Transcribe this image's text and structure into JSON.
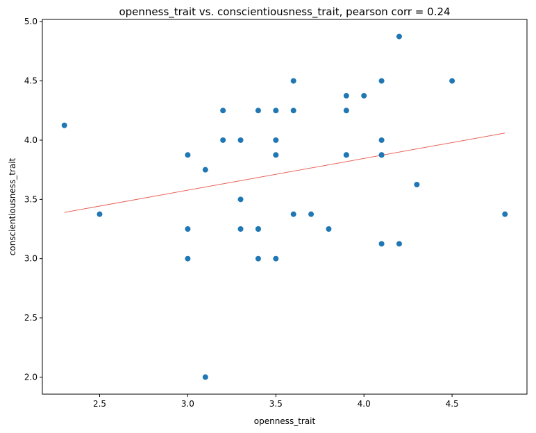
{
  "chart_data": {
    "type": "scatter",
    "title": "openness_trait vs. conscientiousness_trait, pearson corr = 0.24",
    "xlabel": "openness_trait",
    "ylabel": "conscientiousness_trait",
    "xlim": [
      2.175,
      4.925
    ],
    "ylim": [
      1.856,
      5.019
    ],
    "x_ticks": [
      "2.5",
      "3.0",
      "3.5",
      "4.0",
      "4.5"
    ],
    "y_ticks": [
      "2.0",
      "2.5",
      "3.0",
      "3.5",
      "4.0",
      "4.5",
      "5.0"
    ],
    "grid": false,
    "point_color": "#1f77b4",
    "trendline_color": "#e8645a",
    "trendline": {
      "x": [
        2.3,
        4.8
      ],
      "y": [
        3.39,
        4.06
      ]
    },
    "points": [
      {
        "x": 2.3,
        "y": 4.125
      },
      {
        "x": 2.5,
        "y": 3.375
      },
      {
        "x": 3.0,
        "y": 3.875
      },
      {
        "x": 3.0,
        "y": 3.25
      },
      {
        "x": 3.0,
        "y": 3.0
      },
      {
        "x": 3.1,
        "y": 3.75
      },
      {
        "x": 3.1,
        "y": 2.0
      },
      {
        "x": 3.2,
        "y": 4.25
      },
      {
        "x": 3.2,
        "y": 4.0
      },
      {
        "x": 3.3,
        "y": 4.0
      },
      {
        "x": 3.3,
        "y": 3.5
      },
      {
        "x": 3.3,
        "y": 3.25
      },
      {
        "x": 3.4,
        "y": 4.25
      },
      {
        "x": 3.4,
        "y": 3.25
      },
      {
        "x": 3.4,
        "y": 3.25
      },
      {
        "x": 3.4,
        "y": 3.0
      },
      {
        "x": 3.5,
        "y": 4.25
      },
      {
        "x": 3.5,
        "y": 4.0
      },
      {
        "x": 3.5,
        "y": 3.875
      },
      {
        "x": 3.5,
        "y": 3.0
      },
      {
        "x": 3.6,
        "y": 4.5
      },
      {
        "x": 3.6,
        "y": 4.25
      },
      {
        "x": 3.6,
        "y": 3.375
      },
      {
        "x": 3.7,
        "y": 3.375
      },
      {
        "x": 3.8,
        "y": 3.25
      },
      {
        "x": 3.9,
        "y": 4.375
      },
      {
        "x": 3.9,
        "y": 4.25
      },
      {
        "x": 3.9,
        "y": 3.875
      },
      {
        "x": 3.9,
        "y": 3.875
      },
      {
        "x": 4.0,
        "y": 4.375
      },
      {
        "x": 4.1,
        "y": 4.5
      },
      {
        "x": 4.1,
        "y": 4.0
      },
      {
        "x": 4.1,
        "y": 3.875
      },
      {
        "x": 4.1,
        "y": 3.875
      },
      {
        "x": 4.1,
        "y": 3.125
      },
      {
        "x": 4.2,
        "y": 4.875
      },
      {
        "x": 4.2,
        "y": 3.125
      },
      {
        "x": 4.3,
        "y": 3.625
      },
      {
        "x": 4.5,
        "y": 4.5
      },
      {
        "x": 4.8,
        "y": 3.375
      }
    ]
  }
}
